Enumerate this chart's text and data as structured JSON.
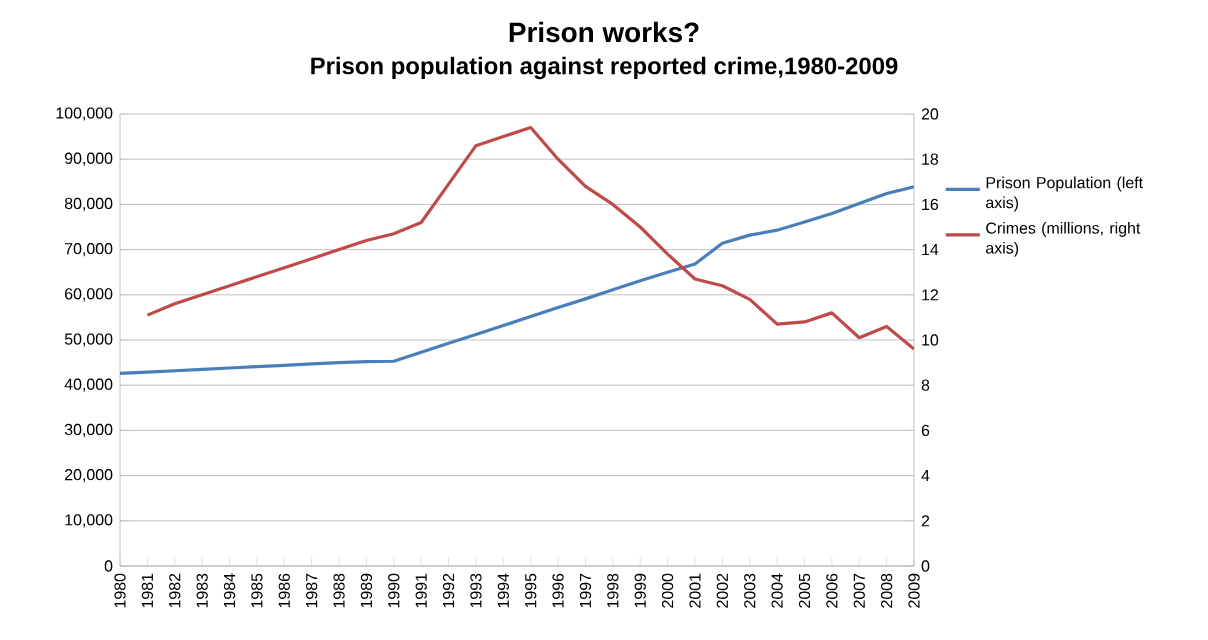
{
  "chart_data": {
    "type": "line",
    "title": "Prison works?",
    "subtitle": "Prison population against reported crime,1980-2009",
    "categories": [
      "1980",
      "1981",
      "1982",
      "1983",
      "1984",
      "1985",
      "1986",
      "1987",
      "1988",
      "1989",
      "1990",
      "1991",
      "1992",
      "1993",
      "1994",
      "1995",
      "1996",
      "1997",
      "1998",
      "1999",
      "2000",
      "2001",
      "2002",
      "2003",
      "2004",
      "2005",
      "2006",
      "2007",
      "2008",
      "2009"
    ],
    "series": [
      {
        "name": "Prison Population (left axis)",
        "color": "#4a7ebb",
        "values": [
          42600,
          42900,
          43200,
          43500,
          43800,
          44100,
          44400,
          44700,
          45000,
          45200,
          45300,
          47300,
          49300,
          51200,
          53200,
          55200,
          57200,
          59100,
          61100,
          63100,
          65000,
          66800,
          71400,
          73200,
          74300,
          76100,
          78000,
          80200,
          82400,
          83900
        ]
      },
      {
        "name": "Crimes (millions, right axis)",
        "color": "#be4b48",
        "axis": "y2",
        "values": [
          null,
          11.1,
          11.6,
          12.0,
          12.4,
          12.8,
          13.2,
          13.6,
          14.0,
          14.4,
          14.7,
          15.2,
          16.9,
          18.6,
          19.0,
          19.4,
          18.0,
          16.8,
          16.0,
          15.0,
          13.8,
          12.7,
          12.4,
          11.8,
          10.7,
          10.8,
          11.2,
          10.1,
          10.6,
          9.6
        ]
      }
    ],
    "ylim": [
      0,
      100000
    ],
    "yticks": [
      0,
      {
        "value": 10000,
        "label": "10,000"
      },
      {
        "value": 20000,
        "label": "20,000"
      },
      {
        "value": 30000,
        "label": "30,000"
      },
      {
        "value": 40000,
        "label": "40,000"
      },
      {
        "value": 50000,
        "label": "50,000"
      },
      {
        "value": 60000,
        "label": "60,000"
      },
      {
        "value": 70000,
        "label": "70,000"
      },
      {
        "value": 80000,
        "label": "80,000"
      },
      {
        "value": 90000,
        "label": "90,000"
      },
      {
        "value": 100000,
        "label": "100,000"
      }
    ],
    "y2lim": [
      0,
      20
    ],
    "y2ticks": [
      0,
      2,
      4,
      6,
      8,
      10,
      12,
      14,
      16,
      18,
      20
    ],
    "grid": "y",
    "legend": "right",
    "marker": "none",
    "line_style": "solid"
  }
}
